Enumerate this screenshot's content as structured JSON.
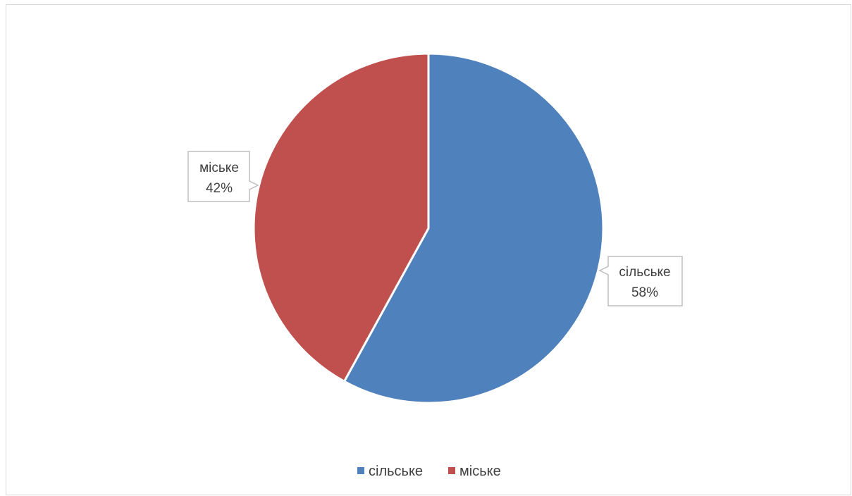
{
  "chart_data": {
    "type": "pie",
    "categories": [
      "сільське",
      "міське"
    ],
    "values": [
      58,
      42
    ],
    "colors": [
      "#4f81bd",
      "#c0504d"
    ],
    "data_labels": [
      {
        "category": "сільське",
        "percent": "58%"
      },
      {
        "category": "міське",
        "percent": "42%"
      }
    ],
    "legend": {
      "placement": "bottom",
      "entries": [
        "сільське",
        "міське"
      ]
    }
  }
}
